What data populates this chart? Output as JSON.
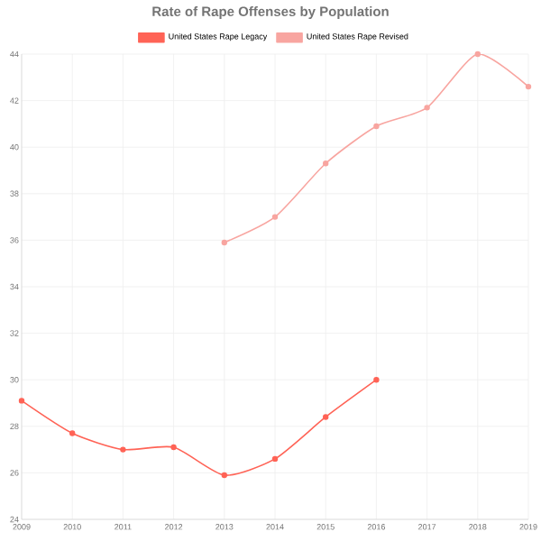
{
  "chart_data": {
    "type": "line",
    "title": "Rate of Rape Offenses by Population",
    "categories": [
      "2009",
      "2010",
      "2011",
      "2012",
      "2013",
      "2014",
      "2015",
      "2016",
      "2017",
      "2018",
      "2019"
    ],
    "series": [
      {
        "name": "United States Rape Legacy",
        "color": "#ff6356",
        "values": [
          29.1,
          27.7,
          27.0,
          27.1,
          25.9,
          26.6,
          28.4,
          30.0,
          null,
          null,
          null
        ]
      },
      {
        "name": "United States Rape Revised",
        "color": "#f8a5a0",
        "values": [
          null,
          null,
          null,
          null,
          35.9,
          37.0,
          39.3,
          40.9,
          41.7,
          44.0,
          42.6
        ]
      }
    ],
    "ylim": [
      24,
      44
    ],
    "yticks": [
      24,
      26,
      28,
      30,
      32,
      34,
      36,
      38,
      40,
      42,
      44
    ],
    "grid": true,
    "legend": "top",
    "marker": "circle",
    "line_style": "solid"
  }
}
